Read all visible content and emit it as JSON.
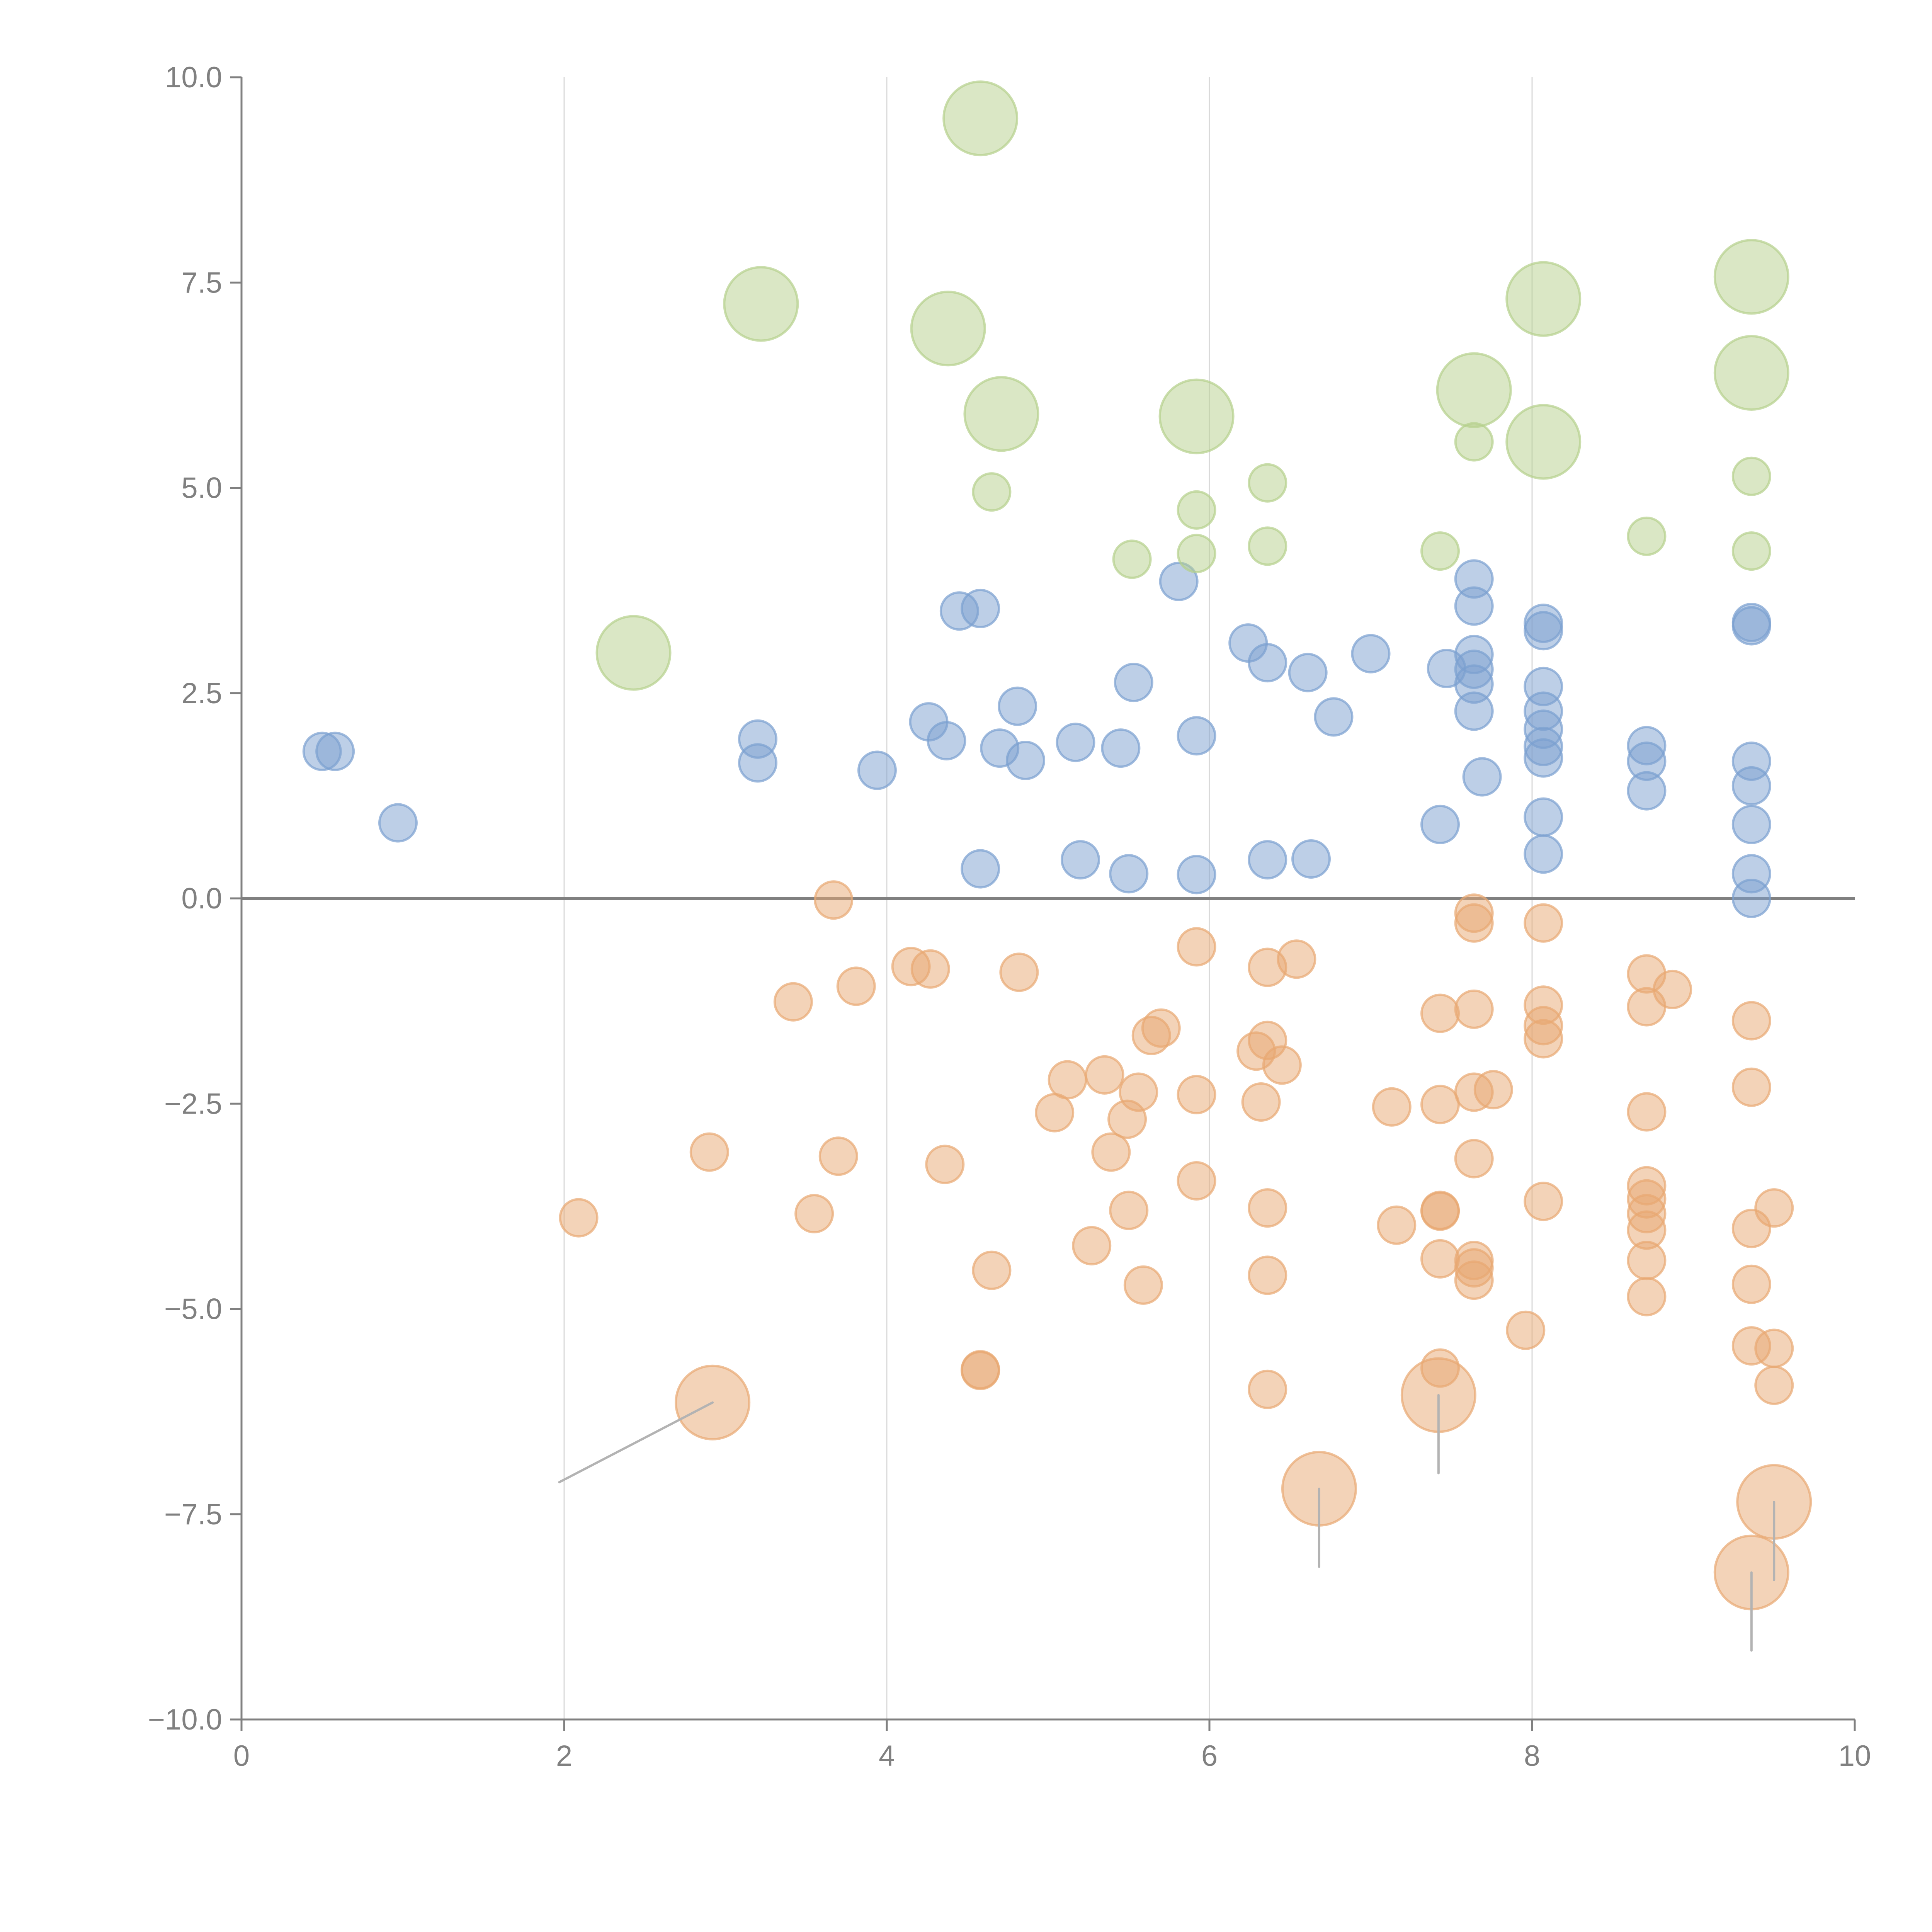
{
  "chart_data": {
    "type": "scatter",
    "title": "",
    "xlabel": "",
    "ylabel": "",
    "xlim": [
      0,
      10
    ],
    "ylim": [
      -10,
      10
    ],
    "x_ticks": [
      "0",
      "2",
      "4",
      "6",
      "8",
      "10"
    ],
    "x_tick_values": [
      0,
      2,
      4,
      6,
      8,
      10
    ],
    "y_ticks": [
      "10.0",
      "7.5",
      "5.0",
      "2.5",
      "0.0",
      "−2.5",
      "−5.0",
      "−7.5",
      "−10.0"
    ],
    "y_tick_values": [
      10,
      7.5,
      5,
      2.5,
      0,
      -2.5,
      -5,
      -7.5,
      -10
    ],
    "grid": "vertical gridlines at x ticks",
    "reference_line_y": 0,
    "legend": "none",
    "series": [
      {
        "name": "positive-low",
        "color": "#7ba0d0",
        "points": [
          [
            0.5,
            1.79,
            1
          ],
          [
            0.58,
            1.79,
            1
          ],
          [
            0.97,
            0.92,
            1
          ],
          [
            3.2,
            1.94,
            1
          ],
          [
            3.2,
            1.65,
            1
          ],
          [
            3.94,
            1.56,
            1
          ],
          [
            4.26,
            2.15,
            1
          ],
          [
            4.37,
            1.92,
            1
          ],
          [
            4.45,
            3.5,
            1
          ],
          [
            4.58,
            3.53,
            1
          ],
          [
            4.7,
            1.83,
            1
          ],
          [
            4.81,
            2.34,
            1
          ],
          [
            4.86,
            1.68,
            1
          ],
          [
            5.17,
            1.9,
            1
          ],
          [
            5.45,
            1.83,
            1
          ],
          [
            5.53,
            2.63,
            1
          ],
          [
            5.81,
            3.86,
            1
          ],
          [
            5.92,
            1.98,
            1
          ],
          [
            6.24,
            3.11,
            1
          ],
          [
            6.36,
            2.87,
            1
          ],
          [
            6.61,
            2.75,
            1
          ],
          [
            6.77,
            2.21,
            1
          ],
          [
            7.0,
            2.98,
            1
          ],
          [
            7.47,
            2.8,
            1
          ],
          [
            7.64,
            3.89,
            1
          ],
          [
            7.64,
            3.56,
            1
          ],
          [
            7.64,
            2.97,
            1
          ],
          [
            7.64,
            2.79,
            1
          ],
          [
            7.64,
            2.61,
            1
          ],
          [
            7.64,
            2.28,
            1
          ],
          [
            7.69,
            1.48,
            1
          ],
          [
            7.43,
            0.9,
            1
          ],
          [
            8.07,
            3.35,
            1
          ],
          [
            8.07,
            3.26,
            1
          ],
          [
            8.07,
            2.58,
            1
          ],
          [
            8.07,
            2.28,
            1
          ],
          [
            8.07,
            2.06,
            1
          ],
          [
            8.07,
            1.85,
            1
          ],
          [
            8.07,
            1.71,
            1
          ],
          [
            8.07,
            0.99,
            1
          ],
          [
            8.07,
            0.54,
            1
          ],
          [
            8.71,
            1.86,
            1
          ],
          [
            8.71,
            1.67,
            1
          ],
          [
            8.71,
            1.31,
            1
          ],
          [
            9.36,
            3.36,
            1
          ],
          [
            9.36,
            3.32,
            1
          ],
          [
            9.36,
            1.67,
            1
          ],
          [
            9.36,
            1.37,
            1
          ],
          [
            9.36,
            0.9,
            1
          ],
          [
            9.36,
            0.3,
            1
          ],
          [
            9.36,
            0.0,
            1
          ],
          [
            4.58,
            0.36,
            1
          ],
          [
            5.2,
            0.47,
            1
          ],
          [
            5.5,
            0.3,
            1
          ],
          [
            5.92,
            0.29,
            1
          ],
          [
            6.36,
            0.47,
            1
          ],
          [
            6.63,
            0.48,
            1
          ]
        ]
      },
      {
        "name": "positive-high",
        "color": "#b5d08c",
        "points": [
          [
            4.58,
            9.5,
            2
          ],
          [
            3.22,
            7.24,
            2
          ],
          [
            4.38,
            6.94,
            2
          ],
          [
            4.71,
            5.9,
            2
          ],
          [
            5.92,
            5.87,
            2
          ],
          [
            7.64,
            6.19,
            2
          ],
          [
            8.07,
            7.3,
            2
          ],
          [
            8.07,
            5.56,
            2
          ],
          [
            9.36,
            7.57,
            2
          ],
          [
            9.36,
            6.4,
            2
          ],
          [
            2.43,
            2.99,
            2
          ],
          [
            4.65,
            4.95,
            1
          ],
          [
            5.52,
            4.13,
            1
          ],
          [
            5.92,
            4.73,
            1
          ],
          [
            5.92,
            4.2,
            1
          ],
          [
            6.36,
            5.06,
            1
          ],
          [
            6.36,
            4.29,
            1
          ],
          [
            7.43,
            4.23,
            1
          ],
          [
            7.64,
            5.56,
            1
          ],
          [
            8.71,
            4.41,
            1
          ],
          [
            9.36,
            5.14,
            1
          ],
          [
            9.36,
            4.23,
            1
          ]
        ]
      },
      {
        "name": "negative",
        "color": "#e8a872",
        "points": [
          [
            3.67,
            -0.02,
            1
          ],
          [
            3.42,
            -1.26,
            1
          ],
          [
            3.81,
            -1.07,
            1
          ],
          [
            4.15,
            -0.83,
            1
          ],
          [
            4.27,
            -0.86,
            1
          ],
          [
            4.82,
            -0.9,
            1
          ],
          [
            2.9,
            -3.09,
            1
          ],
          [
            2.09,
            -3.89,
            1
          ],
          [
            3.55,
            -3.84,
            1
          ],
          [
            3.7,
            -3.14,
            1
          ],
          [
            4.36,
            -3.24,
            1
          ],
          [
            4.65,
            -4.53,
            1
          ],
          [
            4.58,
            -5.75,
            1
          ],
          [
            4.58,
            -5.74,
            1
          ],
          [
            5.04,
            -2.61,
            1
          ],
          [
            5.12,
            -2.21,
            1
          ],
          [
            5.27,
            -4.23,
            1
          ],
          [
            5.35,
            -2.15,
            1
          ],
          [
            5.39,
            -3.09,
            1
          ],
          [
            5.49,
            -2.69,
            1
          ],
          [
            5.5,
            -3.8,
            1
          ],
          [
            5.56,
            -2.36,
            1
          ],
          [
            5.59,
            -4.71,
            1
          ],
          [
            5.64,
            -1.67,
            1
          ],
          [
            5.7,
            -1.58,
            1
          ],
          [
            5.92,
            -0.59,
            1
          ],
          [
            5.92,
            -2.39,
            1
          ],
          [
            5.92,
            -3.44,
            1
          ],
          [
            6.29,
            -1.86,
            1
          ],
          [
            6.32,
            -2.48,
            1
          ],
          [
            6.36,
            -0.84,
            1
          ],
          [
            6.36,
            -1.73,
            1
          ],
          [
            6.36,
            -3.77,
            1
          ],
          [
            6.36,
            -4.59,
            1
          ],
          [
            6.36,
            -5.98,
            1
          ],
          [
            6.45,
            -2.03,
            1
          ],
          [
            6.54,
            -0.74,
            1
          ],
          [
            7.13,
            -2.54,
            1
          ],
          [
            7.16,
            -3.98,
            1
          ],
          [
            7.43,
            -1.4,
            1
          ],
          [
            7.43,
            -2.51,
            1
          ],
          [
            7.43,
            -3.8,
            1
          ],
          [
            7.43,
            -3.81,
            1
          ],
          [
            7.43,
            -4.39,
            1
          ],
          [
            7.43,
            -5.72,
            1
          ],
          [
            7.64,
            -0.18,
            1
          ],
          [
            7.64,
            -0.3,
            1
          ],
          [
            7.64,
            -1.35,
            1
          ],
          [
            7.64,
            -2.36,
            1
          ],
          [
            7.64,
            -3.17,
            1
          ],
          [
            7.64,
            -4.41,
            1
          ],
          [
            7.64,
            -4.5,
            1
          ],
          [
            7.64,
            -4.65,
            1
          ],
          [
            7.76,
            -2.33,
            1
          ],
          [
            7.96,
            -5.26,
            1
          ],
          [
            8.07,
            -0.3,
            1
          ],
          [
            8.07,
            -1.3,
            1
          ],
          [
            8.07,
            -1.55,
            1
          ],
          [
            8.07,
            -1.71,
            1
          ],
          [
            8.07,
            -3.69,
            1
          ],
          [
            8.71,
            -0.92,
            1
          ],
          [
            8.71,
            -1.32,
            1
          ],
          [
            8.71,
            -2.6,
            1
          ],
          [
            8.71,
            -3.5,
            1
          ],
          [
            8.71,
            -3.66,
            1
          ],
          [
            8.71,
            -3.84,
            1
          ],
          [
            8.71,
            -4.04,
            1
          ],
          [
            8.71,
            -4.41,
            1
          ],
          [
            8.71,
            -4.85,
            1
          ],
          [
            8.87,
            -1.11,
            1
          ],
          [
            9.36,
            -1.49,
            1
          ],
          [
            9.36,
            -2.3,
            1
          ],
          [
            9.36,
            -4.02,
            1
          ],
          [
            9.36,
            -4.7,
            1
          ],
          [
            9.36,
            -5.45,
            1
          ],
          [
            9.5,
            -3.77,
            1
          ],
          [
            9.5,
            -5.48,
            1
          ],
          [
            9.5,
            -5.93,
            1
          ],
          [
            2.92,
            -6.14,
            2
          ],
          [
            7.42,
            -6.05,
            2
          ],
          [
            6.68,
            -7.19,
            2
          ],
          [
            9.5,
            -7.35,
            2
          ],
          [
            9.36,
            -8.21,
            2
          ]
        ]
      }
    ],
    "point_format": "[x, y, size_class] where size_class 1 = small bubble, 2 = large bubble",
    "leader_lines": [
      {
        "from": [
          2.92,
          -6.14
        ],
        "to": [
          1.97,
          -7.11
        ]
      },
      {
        "from": [
          7.42,
          -6.05
        ],
        "to": [
          7.42,
          -7.0
        ]
      },
      {
        "from": [
          6.68,
          -7.19
        ],
        "to": [
          6.68,
          -8.14
        ]
      },
      {
        "from": [
          9.5,
          -7.35
        ],
        "to": [
          9.5,
          -8.3
        ]
      },
      {
        "from": [
          9.36,
          -8.21
        ],
        "to": [
          9.36,
          -9.16
        ]
      }
    ]
  }
}
